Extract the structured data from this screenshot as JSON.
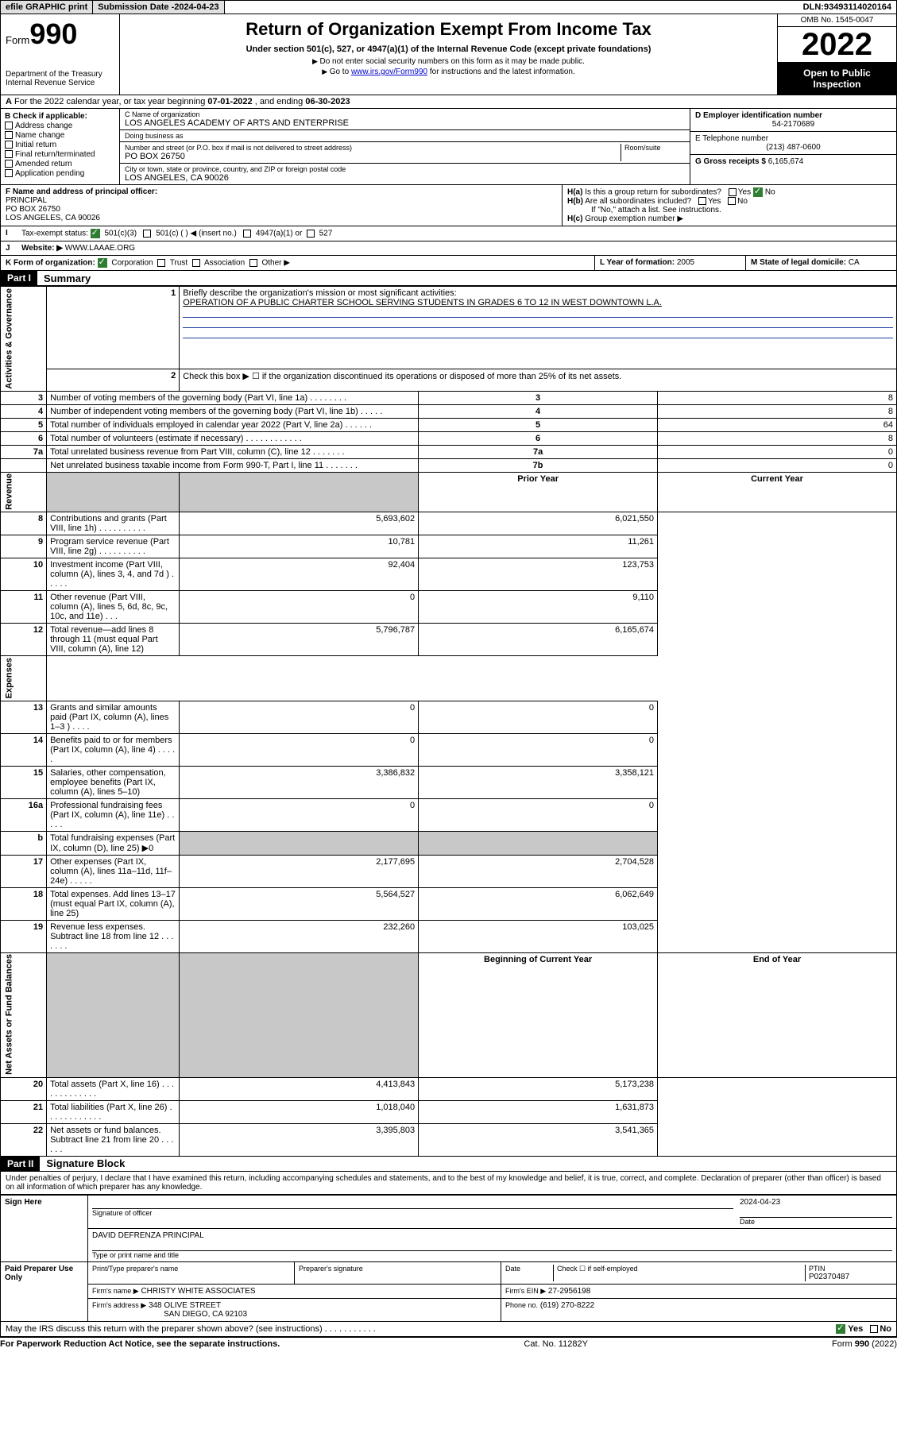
{
  "topbar": {
    "efile": "efile GRAPHIC print",
    "sub_label": "Submission Date - ",
    "sub_date": "2024-04-23",
    "dln_label": "DLN: ",
    "dln": "93493114020164"
  },
  "header": {
    "form_prefix": "Form",
    "form_no": "990",
    "dept": "Department of the Treasury\nInternal Revenue Service",
    "title": "Return of Organization Exempt From Income Tax",
    "subtitle": "Under section 501(c), 527, or 4947(a)(1) of the Internal Revenue Code (except private foundations)",
    "note1": "Do not enter social security numbers on this form as it may be made public.",
    "note2_pre": "Go to ",
    "note2_link": "www.irs.gov/Form990",
    "note2_post": " for instructions and the latest information.",
    "omb": "OMB No. 1545-0047",
    "year": "2022",
    "open_pub": "Open to Public Inspection"
  },
  "A": {
    "text_pre": "For the 2022 calendar year, or tax year beginning ",
    "begin": "07-01-2022",
    "mid": " , and ending ",
    "end": "06-30-2023"
  },
  "B": {
    "label": "B Check if applicable:",
    "opts": [
      "Address change",
      "Name change",
      "Initial return",
      "Final return/terminated",
      "Amended return",
      "Application pending"
    ]
  },
  "C": {
    "name_lbl": "C Name of organization",
    "name": "LOS ANGELES ACADEMY OF ARTS AND ENTERPRISE",
    "dba_lbl": "Doing business as",
    "addr_lbl": "Number and street (or P.O. box if mail is not delivered to street address)",
    "room_lbl": "Room/suite",
    "addr": "PO BOX 26750",
    "city_lbl": "City or town, state or province, country, and ZIP or foreign postal code",
    "city": "LOS ANGELES, CA  90026"
  },
  "D": {
    "lbl": "D Employer identification number",
    "val": "54-2170689"
  },
  "E": {
    "lbl": "E Telephone number",
    "val": "(213) 487-0600"
  },
  "G": {
    "lbl": "G Gross receipts $",
    "val": "6,165,674"
  },
  "F": {
    "lbl": "F  Name and address of principal officer:",
    "name": "PRINCIPAL",
    "addr1": "PO BOX 26750",
    "addr2": "LOS ANGELES, CA  90026"
  },
  "H": {
    "a": "Is this a group return for subordinates?",
    "b": "Are all subordinates included?",
    "b_note": "If \"No,\" attach a list. See instructions.",
    "c": "Group exemption number ▶",
    "yes": "Yes",
    "no": "No"
  },
  "I": {
    "lbl": "Tax-exempt status:",
    "o1": "501(c)(3)",
    "o2": "501(c) (  ) ◀ (insert no.)",
    "o3": "4947(a)(1) or",
    "o4": "527"
  },
  "J": {
    "lbl": "Website: ▶",
    "val": "WWW.LAAAE.ORG"
  },
  "K": {
    "lbl": "K Form of organization:",
    "o1": "Corporation",
    "o2": "Trust",
    "o3": "Association",
    "o4": "Other ▶"
  },
  "L": {
    "lbl": "L Year of formation:",
    "val": "2005"
  },
  "M": {
    "lbl": "M State of legal domicile:",
    "val": "CA"
  },
  "part1": {
    "tag": "Part I",
    "title": "Summary"
  },
  "summary": {
    "side_labels": [
      "Activities & Governance",
      "Revenue",
      "Expenses",
      "Net Assets or Fund Balances"
    ],
    "mission_lbl": "Briefly describe the organization's mission or most significant activities:",
    "mission": "OPERATION OF A PUBLIC CHARTER SCHOOL SERVING STUDENTS IN GRADES 6 TO 12 IN WEST DOWNTOWN L.A.",
    "line2": "Check this box ▶ ☐  if the organization discontinued its operations or disposed of more than 25% of its net assets.",
    "col_prior": "Prior Year",
    "col_curr": "Current Year",
    "col_begin": "Beginning of Current Year",
    "col_end": "End of Year",
    "rows_gov": [
      {
        "n": "3",
        "d": "Number of voting members of the governing body (Part VI, line 1a)  .   .   .   .   .   .   .   .",
        "box": "3",
        "v": "8"
      },
      {
        "n": "4",
        "d": "Number of independent voting members of the governing body (Part VI, line 1b)  .   .   .   .   .",
        "box": "4",
        "v": "8"
      },
      {
        "n": "5",
        "d": "Total number of individuals employed in calendar year 2022 (Part V, line 2a)  .   .   .   .   .   .",
        "box": "5",
        "v": "64"
      },
      {
        "n": "6",
        "d": "Total number of volunteers (estimate if necessary)  .   .   .   .   .   .   .   .   .   .   .   .",
        "box": "6",
        "v": "8"
      },
      {
        "n": "7a",
        "d": "Total unrelated business revenue from Part VIII, column (C), line 12  .   .   .   .   .   .   .",
        "box": "7a",
        "v": "0"
      },
      {
        "n": "",
        "d": "Net unrelated business taxable income from Form 990-T, Part I, line 11  .   .   .   .   .   .   .",
        "box": "7b",
        "v": "0"
      }
    ],
    "rows_rev": [
      {
        "n": "8",
        "d": "Contributions and grants (Part VIII, line 1h)  .   .   .   .   .   .   .   .   .   .",
        "p": "5,693,602",
        "c": "6,021,550"
      },
      {
        "n": "9",
        "d": "Program service revenue (Part VIII, line 2g)  .   .   .   .   .   .   .   .   .   .",
        "p": "10,781",
        "c": "11,261"
      },
      {
        "n": "10",
        "d": "Investment income (Part VIII, column (A), lines 3, 4, and 7d )  .   .   .   .   .",
        "p": "92,404",
        "c": "123,753"
      },
      {
        "n": "11",
        "d": "Other revenue (Part VIII, column (A), lines 5, 6d, 8c, 9c, 10c, and 11e)  .   .   .",
        "p": "0",
        "c": "9,110"
      },
      {
        "n": "12",
        "d": "Total revenue—add lines 8 through 11 (must equal Part VIII, column (A), line 12)",
        "p": "5,796,787",
        "c": "6,165,674"
      }
    ],
    "rows_exp": [
      {
        "n": "13",
        "d": "Grants and similar amounts paid (Part IX, column (A), lines 1–3 )  .   .   .   .",
        "p": "0",
        "c": "0"
      },
      {
        "n": "14",
        "d": "Benefits paid to or for members (Part IX, column (A), line 4)  .   .   .   .   .",
        "p": "0",
        "c": "0"
      },
      {
        "n": "15",
        "d": "Salaries, other compensation, employee benefits (Part IX, column (A), lines 5–10)",
        "p": "3,386,832",
        "c": "3,358,121"
      },
      {
        "n": "16a",
        "d": "Professional fundraising fees (Part IX, column (A), line 11e)  .   .   .   .   .",
        "p": "0",
        "c": "0"
      },
      {
        "n": "b",
        "d": "Total fundraising expenses (Part IX, column (D), line 25) ▶0",
        "p": "",
        "c": "",
        "shade": true
      },
      {
        "n": "17",
        "d": "Other expenses (Part IX, column (A), lines 11a–11d, 11f–24e)  .   .   .   .   .",
        "p": "2,177,695",
        "c": "2,704,528"
      },
      {
        "n": "18",
        "d": "Total expenses. Add lines 13–17 (must equal Part IX, column (A), line 25)",
        "p": "5,564,527",
        "c": "6,062,649"
      },
      {
        "n": "19",
        "d": "Revenue less expenses. Subtract line 18 from line 12  .   .   .   .   .   .   .",
        "p": "232,260",
        "c": "103,025"
      }
    ],
    "rows_net": [
      {
        "n": "20",
        "d": "Total assets (Part X, line 16)  .   .   .   .   .   .   .   .   .   .   .   .   .",
        "p": "4,413,843",
        "c": "5,173,238"
      },
      {
        "n": "21",
        "d": "Total liabilities (Part X, line 26)  .   .   .   .   .   .   .   .   .   .   .   .",
        "p": "1,018,040",
        "c": "1,631,873"
      },
      {
        "n": "22",
        "d": "Net assets or fund balances. Subtract line 21 from line 20  .   .   .   .   .   .",
        "p": "3,395,803",
        "c": "3,541,365"
      }
    ]
  },
  "part2": {
    "tag": "Part II",
    "title": "Signature Block"
  },
  "sig": {
    "penalty": "Under penalties of perjury, I declare that I have examined this return, including accompanying schedules and statements, and to the best of my knowledge and belief, it is true, correct, and complete. Declaration of preparer (other than officer) is based on all information of which preparer has any knowledge.",
    "sign_here": "Sign Here",
    "sig_officer": "Signature of officer",
    "date_lbl": "Date",
    "date": "2024-04-23",
    "officer_name": "DAVID DEFRENZA  PRINCIPAL",
    "type_name": "Type or print name and title",
    "paid": "Paid Preparer Use Only",
    "prep_name_lbl": "Print/Type preparer's name",
    "prep_sig_lbl": "Preparer's signature",
    "check_self": "Check ☐ if self-employed",
    "ptin_lbl": "PTIN",
    "ptin": "P02370487",
    "firm_name_lbl": "Firm's name   ▶",
    "firm_name": "CHRISTY WHITE ASSOCIATES",
    "firm_ein_lbl": "Firm's EIN ▶",
    "firm_ein": "27-2956198",
    "firm_addr_lbl": "Firm's address ▶",
    "firm_addr1": "348 OLIVE STREET",
    "firm_addr2": "SAN DIEGO, CA  92103",
    "phone_lbl": "Phone no.",
    "phone": "(619) 270-8222",
    "discuss": "May the IRS discuss this return with the preparer shown above? (see instructions)  .   .   .   .   .   .   .   .   .   .   ."
  },
  "footer": {
    "left": "For Paperwork Reduction Act Notice, see the separate instructions.",
    "mid": "Cat. No. 11282Y",
    "right": "Form 990 (2022)"
  }
}
